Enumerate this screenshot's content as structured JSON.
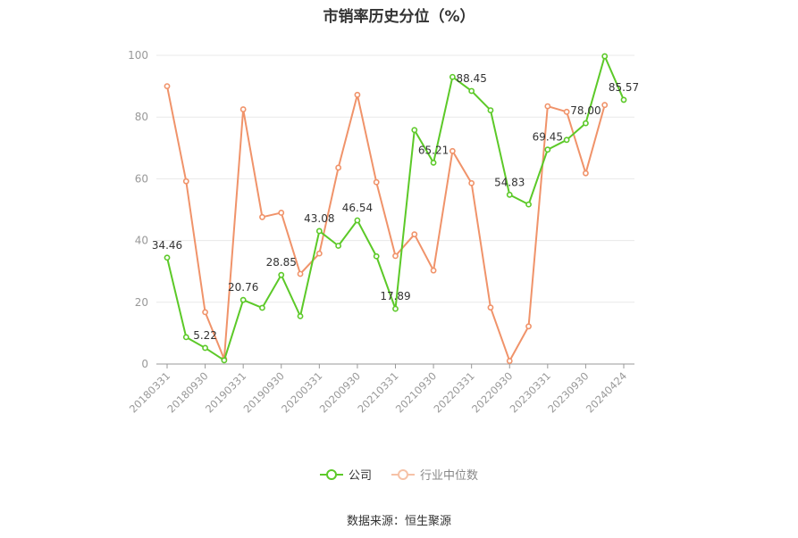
{
  "title": "市销率历史分位（%）",
  "source": "数据来源：恒生聚源",
  "colors": {
    "company": "#5cc928",
    "industry": "#f0936a",
    "grid": "#e8e8e8",
    "axis": "#999999",
    "label": "#333333",
    "tick": "#999999"
  },
  "chart_data": {
    "type": "line",
    "ylim": [
      0,
      100
    ],
    "yticks": [
      0,
      20,
      40,
      60,
      80,
      100
    ],
    "x": [
      "20180331",
      "20180630",
      "20180930",
      "20181231",
      "20190331",
      "20190630",
      "20190930",
      "20191231",
      "20200331",
      "20200630",
      "20200930",
      "20201231",
      "20210331",
      "20210630",
      "20210930",
      "20211231",
      "20220331",
      "20220630",
      "20220930",
      "20221231",
      "20230331",
      "20230630",
      "20230930",
      "20231231",
      "20240424"
    ],
    "xticks": [
      "20180331",
      "20180930",
      "20190331",
      "20190930",
      "20200331",
      "20200930",
      "20210331",
      "20210930",
      "20220331",
      "20220930",
      "20230331",
      "20230930",
      "20240424"
    ],
    "series": [
      {
        "name": "公司",
        "color": "#5cc928",
        "values": [
          34.46,
          8.7,
          5.22,
          1.2,
          20.76,
          18.2,
          28.85,
          15.5,
          43.08,
          38.3,
          46.54,
          34.9,
          17.89,
          75.8,
          65.21,
          93.0,
          88.45,
          82.2,
          54.83,
          51.7,
          69.45,
          72.6,
          78.0,
          99.7,
          85.57
        ],
        "labels": [
          "34.46",
          null,
          "5.22",
          null,
          "20.76",
          null,
          "28.85",
          null,
          "43.08",
          null,
          "46.54",
          null,
          "17.89",
          null,
          "65.21",
          null,
          "88.45",
          null,
          "54.83",
          null,
          "69.45",
          null,
          "78.00",
          null,
          "85.57"
        ]
      },
      {
        "name": "行业中位数",
        "color": "#f0936a",
        "values": [
          90.0,
          59.2,
          16.8,
          1.6,
          82.5,
          47.6,
          49.0,
          29.2,
          35.8,
          63.6,
          87.2,
          58.9,
          35.0,
          42.0,
          30.3,
          69.0,
          58.6,
          18.3,
          1.0,
          12.2,
          83.5,
          81.7,
          61.8,
          83.9,
          null
        ]
      }
    ]
  }
}
